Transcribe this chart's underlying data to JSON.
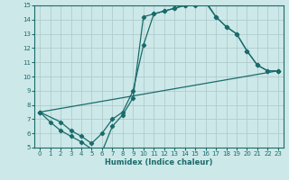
{
  "xlabel": "Humidex (Indice chaleur)",
  "xlim": [
    -0.5,
    23.5
  ],
  "ylim": [
    5,
    15
  ],
  "xticks": [
    0,
    1,
    2,
    3,
    4,
    5,
    6,
    7,
    8,
    9,
    10,
    11,
    12,
    13,
    14,
    15,
    16,
    17,
    18,
    19,
    20,
    21,
    22,
    23
  ],
  "yticks": [
    5,
    6,
    7,
    8,
    9,
    10,
    11,
    12,
    13,
    14,
    15
  ],
  "bg_color": "#cde8e8",
  "line_color": "#1a6b6b",
  "grid_color": "#b0cccc",
  "line1_x": [
    0,
    1,
    2,
    3,
    4,
    5,
    6,
    7,
    8,
    9,
    10,
    11,
    12,
    13,
    14,
    15,
    16,
    17,
    18,
    19,
    20,
    21,
    22,
    23
  ],
  "line1_y": [
    7.5,
    6.8,
    6.2,
    5.8,
    5.4,
    4.9,
    4.7,
    6.5,
    7.3,
    8.5,
    14.2,
    14.4,
    14.6,
    14.8,
    15.0,
    15.0,
    15.2,
    14.2,
    13.5,
    13.0,
    11.8,
    10.8,
    10.4,
    10.4
  ],
  "line2_x": [
    0,
    2,
    3,
    4,
    5,
    6,
    7,
    8,
    9,
    10,
    11,
    12,
    13,
    14,
    15,
    16,
    17,
    18,
    19,
    20,
    21,
    22,
    23
  ],
  "line2_y": [
    7.5,
    6.8,
    6.2,
    5.8,
    5.3,
    6.0,
    7.0,
    7.5,
    9.0,
    12.2,
    14.4,
    14.6,
    14.8,
    15.0,
    15.2,
    15.3,
    14.2,
    13.5,
    13.0,
    11.8,
    10.8,
    10.4,
    10.4
  ],
  "line3_x": [
    0,
    23
  ],
  "line3_y": [
    7.5,
    10.4
  ]
}
